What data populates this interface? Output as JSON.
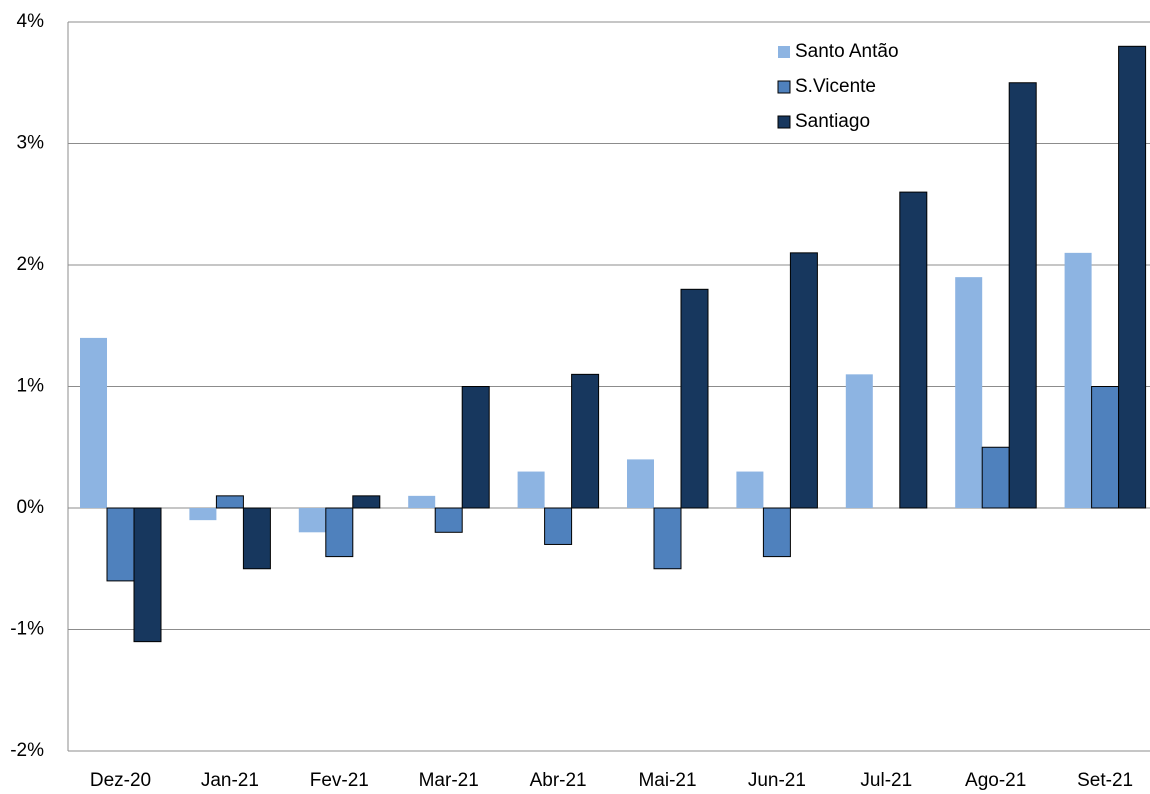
{
  "chart_data": {
    "type": "bar",
    "categories": [
      "Dez-20",
      "Jan-21",
      "Fev-21",
      "Mar-21",
      "Abr-21",
      "Mai-21",
      "Jun-21",
      "Jul-21",
      "Ago-21",
      "Set-21"
    ],
    "series": [
      {
        "name": "Santo Antão",
        "color": "#8db4e2",
        "values": [
          1.4,
          -0.1,
          -0.2,
          0.1,
          0.3,
          0.4,
          0.3,
          1.1,
          1.9,
          2.1
        ]
      },
      {
        "name": "S.Vicente",
        "color": "#4f81bd",
        "values": [
          -0.6,
          0.1,
          -0.4,
          -0.2,
          -0.3,
          -0.5,
          -0.4,
          0,
          0.5,
          1.0
        ]
      },
      {
        "name": "Santiago",
        "color": "#17375e",
        "values": [
          -1.1,
          -0.5,
          0.1,
          1.0,
          1.1,
          1.8,
          2.1,
          2.6,
          3.5,
          3.8
        ]
      }
    ],
    "ylim": [
      -2,
      4
    ],
    "yticks": [
      {
        "value": -2,
        "label": "-2%"
      },
      {
        "value": -1,
        "label": "-1%"
      },
      {
        "value": 0,
        "label": "0%"
      },
      {
        "value": 1,
        "label": "1%"
      },
      {
        "value": 2,
        "label": "2%"
      },
      {
        "value": 3,
        "label": "3%"
      },
      {
        "value": 4,
        "label": "4%"
      }
    ],
    "grid": true,
    "legend": "top-right"
  }
}
